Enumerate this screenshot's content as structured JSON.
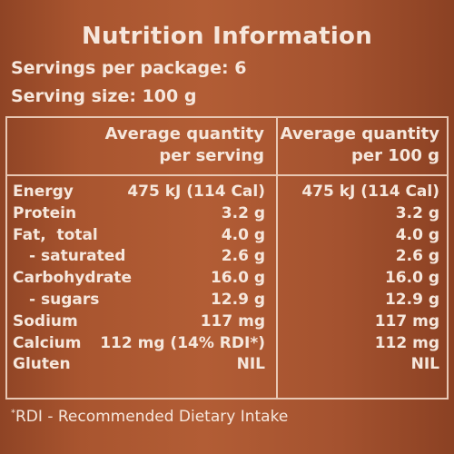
{
  "label": {
    "title": "Nutrition Information",
    "servings_per_package": "Servings per package: 6",
    "serving_size": "Serving size: 100 g",
    "column_headers": {
      "per_serving_line1": "Average quantity",
      "per_serving_line2": "per serving",
      "per_100g_line1": "Average quantity",
      "per_100g_line2": "per 100 g"
    },
    "rows": [
      {
        "nutrient": "Energy",
        "per_serving": "475 kJ (114 Cal)",
        "per_100g": "475 kJ (114 Cal)"
      },
      {
        "nutrient": "Protein",
        "per_serving": "3.2 g",
        "per_100g": "3.2 g"
      },
      {
        "nutrient": "Fat,  total",
        "per_serving": "4.0 g",
        "per_100g": "4.0 g"
      },
      {
        "nutrient": "- saturated",
        "per_serving": "2.6 g",
        "per_100g": "2.6 g"
      },
      {
        "nutrient": "Carbohydrate",
        "per_serving": "16.0 g",
        "per_100g": "16.0 g"
      },
      {
        "nutrient": "- sugars",
        "per_serving": "12.9 g",
        "per_100g": "12.9 g"
      },
      {
        "nutrient": "Sodium",
        "per_serving": "117 mg",
        "per_100g": "117 mg"
      },
      {
        "nutrient": "Calcium",
        "per_serving": "112 mg (14% RDI*)",
        "per_100g": "112 mg"
      },
      {
        "nutrient": "Gluten",
        "per_serving": "NIL",
        "per_100g": "NIL"
      }
    ],
    "footnote_marker": "*",
    "footnote": "RDI - Recommended Dietary Intake"
  },
  "colors": {
    "background": "#a4522f",
    "text": "#f6e7dc",
    "rule": "#e8c7b3"
  }
}
